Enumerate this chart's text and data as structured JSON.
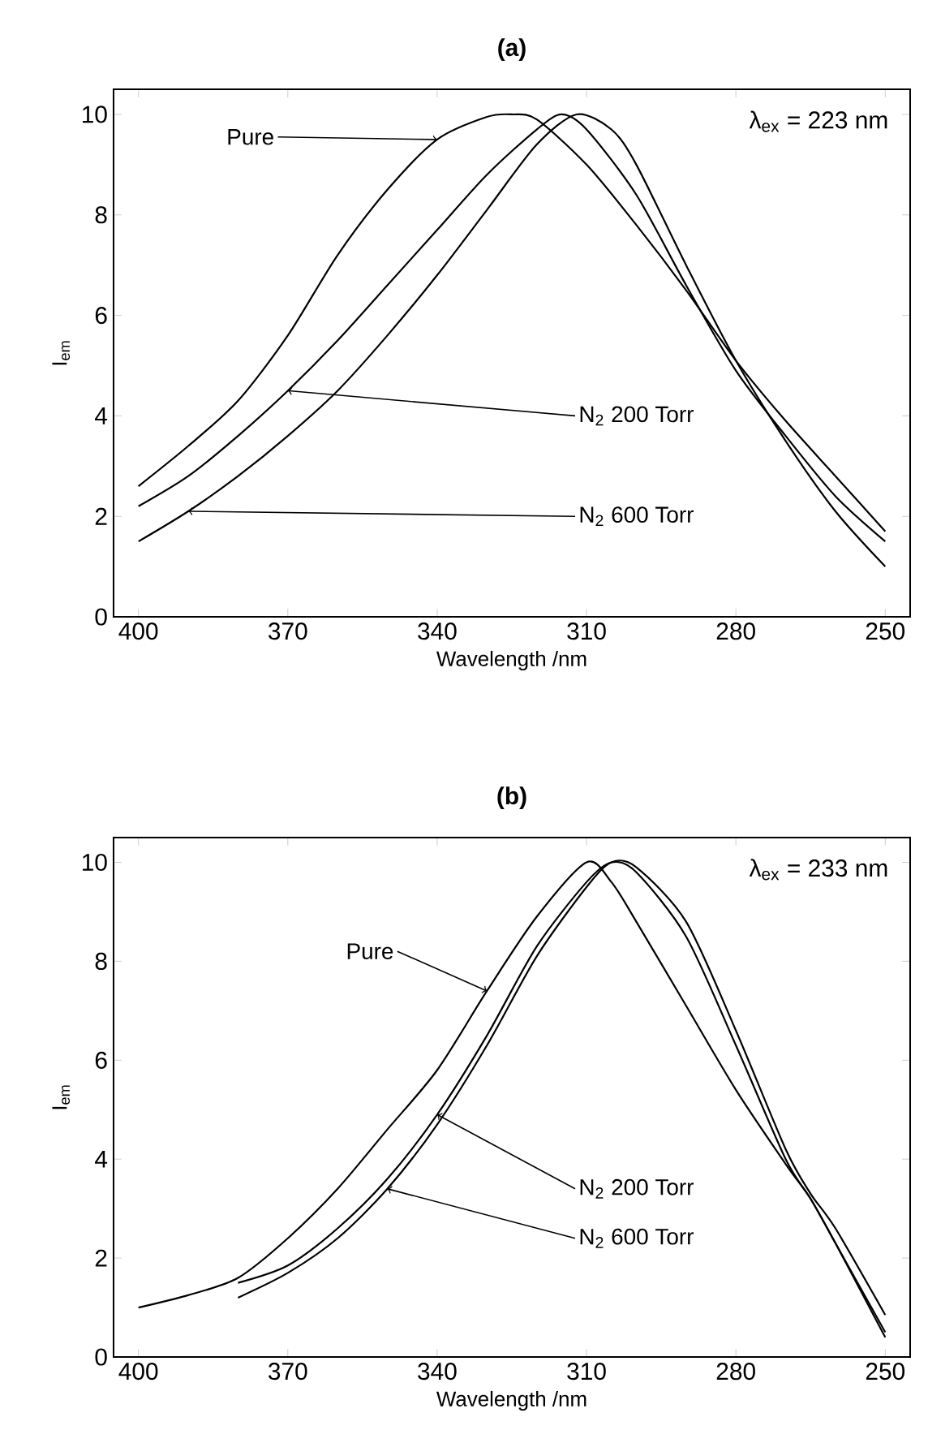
{
  "chart_data": [
    {
      "type": "line",
      "title": "(a)",
      "xlabel": "Wavelength /nm",
      "ylabel": "I$_{em}$",
      "xlim": [
        405,
        245
      ],
      "ylim": [
        0,
        10.5
      ],
      "xticks": [
        400,
        370,
        340,
        310,
        280,
        250
      ],
      "yticks": [
        0,
        2,
        4,
        6,
        8,
        10
      ],
      "legend": false,
      "marker": "none",
      "line_style": "solid",
      "annotations": [
        "λ$_{ex}$ = 223 nm"
      ],
      "series": [
        {
          "name": "Pure",
          "color": "#000000",
          "x": [
            400,
            390,
            380,
            370,
            360,
            350,
            340,
            330,
            325,
            320,
            310,
            300,
            290,
            280,
            270,
            260,
            250
          ],
          "values": [
            2.6,
            3.4,
            4.3,
            5.6,
            7.2,
            8.5,
            9.5,
            9.95,
            10,
            9.9,
            9.0,
            7.8,
            6.5,
            5.1,
            3.9,
            2.8,
            1.7
          ]
        },
        {
          "name": "N$_{2}$ 200 Torr",
          "color": "#000000",
          "x": [
            400,
            390,
            380,
            370,
            360,
            350,
            340,
            330,
            320,
            315,
            310,
            300,
            290,
            280,
            270,
            260,
            250
          ],
          "values": [
            2.2,
            2.8,
            3.6,
            4.5,
            5.5,
            6.6,
            7.7,
            8.8,
            9.7,
            10,
            9.7,
            8.4,
            6.6,
            4.9,
            3.6,
            2.4,
            1.5
          ]
        },
        {
          "name": "N$_{2}$ 600 Torr",
          "color": "#000000",
          "x": [
            400,
            390,
            380,
            370,
            360,
            350,
            340,
            330,
            320,
            312,
            305,
            300,
            290,
            280,
            270,
            260,
            250
          ],
          "values": [
            1.5,
            2.1,
            2.8,
            3.6,
            4.5,
            5.6,
            6.8,
            8.1,
            9.4,
            10,
            9.7,
            9.0,
            7.0,
            5.1,
            3.5,
            2.1,
            1.0
          ]
        }
      ]
    },
    {
      "type": "line",
      "title": "(b)",
      "xlabel": "Wavelength /nm",
      "ylabel": "I$_{em}$",
      "xlim": [
        405,
        245
      ],
      "ylim": [
        0,
        10.5
      ],
      "xticks": [
        400,
        370,
        340,
        310,
        280,
        250
      ],
      "yticks": [
        0,
        2,
        4,
        6,
        8,
        10
      ],
      "legend": false,
      "marker": "none",
      "line_style": "solid",
      "annotations": [
        "λ$_{ex}$ = 233 nm"
      ],
      "series": [
        {
          "name": "Pure",
          "color": "#000000",
          "x": [
            400,
            390,
            380,
            370,
            360,
            350,
            340,
            330,
            320,
            310,
            305,
            300,
            290,
            280,
            270,
            265,
            260,
            250
          ],
          "values": [
            1.0,
            1.25,
            1.6,
            2.4,
            3.4,
            4.6,
            5.8,
            7.4,
            8.9,
            10,
            9.6,
            8.8,
            7.1,
            5.4,
            3.9,
            3.2,
            2.3,
            0.4
          ]
        },
        {
          "name": "N$_{2}$ 200 Torr",
          "color": "#000000",
          "x": [
            380,
            370,
            360,
            350,
            340,
            330,
            320,
            310,
            305,
            300,
            290,
            280,
            270,
            265,
            260,
            250
          ],
          "values": [
            1.5,
            1.85,
            2.6,
            3.6,
            4.9,
            6.5,
            8.3,
            9.6,
            10,
            9.8,
            8.5,
            6.3,
            4.0,
            3.2,
            2.3,
            0.5
          ]
        },
        {
          "name": "N$_{2}$ 600 Torr",
          "color": "#000000",
          "x": [
            380,
            370,
            360,
            350,
            340,
            330,
            320,
            310,
            305,
            300,
            290,
            280,
            270,
            265,
            260,
            250
          ],
          "values": [
            1.2,
            1.7,
            2.4,
            3.4,
            4.7,
            6.3,
            8.1,
            9.5,
            10,
            9.9,
            8.8,
            6.6,
            4.2,
            3.3,
            2.6,
            0.85
          ]
        }
      ]
    }
  ]
}
